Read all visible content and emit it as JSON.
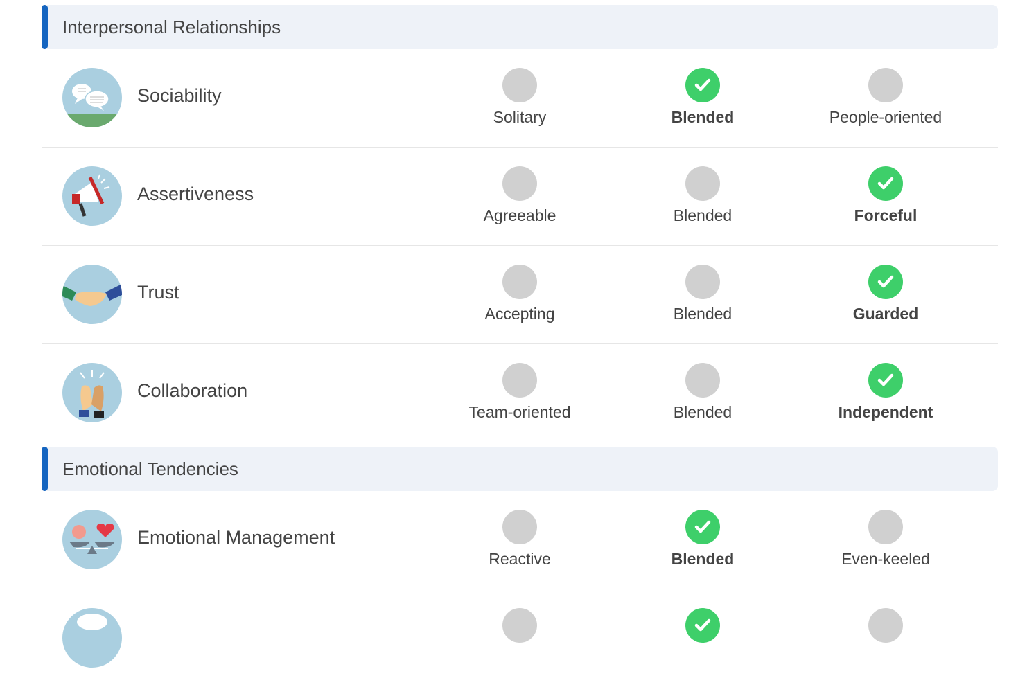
{
  "sections": [
    {
      "title": "Interpersonal Relationships",
      "traits": [
        {
          "name": "Sociability",
          "icon": "speech-bubbles-icon",
          "options": [
            "Solitary",
            "Blended",
            "People-oriented"
          ],
          "selected": 1
        },
        {
          "name": "Assertiveness",
          "icon": "megaphone-icon",
          "options": [
            "Agreeable",
            "Blended",
            "Forceful"
          ],
          "selected": 2
        },
        {
          "name": "Trust",
          "icon": "handshake-icon",
          "options": [
            "Accepting",
            "Blended",
            "Guarded"
          ],
          "selected": 2
        },
        {
          "name": "Collaboration",
          "icon": "high-five-icon",
          "options": [
            "Team-oriented",
            "Blended",
            "Independent"
          ],
          "selected": 2
        }
      ]
    },
    {
      "title": "Emotional Tendencies",
      "traits": [
        {
          "name": "Emotional Management",
          "icon": "brain-heart-scale-icon",
          "options": [
            "Reactive",
            "Blended",
            "Even-keeled"
          ],
          "selected": 1
        },
        {
          "name": "",
          "icon": "cloud-icon",
          "options": [
            "",
            "",
            ""
          ],
          "selected": 1
        }
      ]
    }
  ],
  "colors": {
    "accent": "#1565c0",
    "selected": "#3ecf6a",
    "unselected": "#d0d0d0",
    "header_bg": "#eef2f8"
  }
}
